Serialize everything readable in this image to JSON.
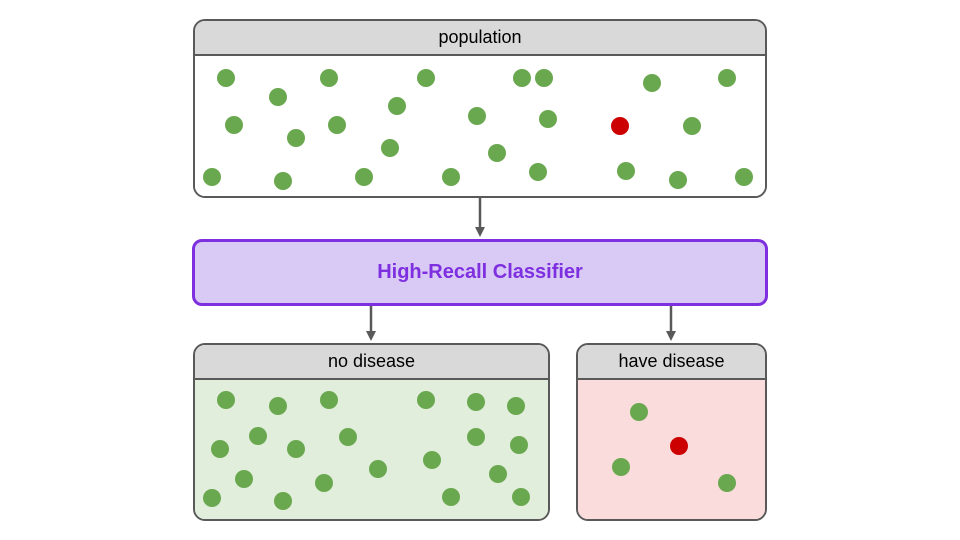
{
  "population": {
    "label": "population",
    "dots": [
      {
        "color": "green"
      },
      {
        "color": "green"
      },
      {
        "color": "green"
      },
      {
        "color": "green"
      },
      {
        "color": "green"
      },
      {
        "color": "green"
      },
      {
        "color": "green"
      },
      {
        "color": "green"
      },
      {
        "color": "green"
      },
      {
        "color": "green"
      },
      {
        "color": "green"
      },
      {
        "color": "green"
      },
      {
        "color": "green"
      },
      {
        "color": "red"
      },
      {
        "color": "green"
      },
      {
        "color": "green"
      },
      {
        "color": "green"
      },
      {
        "color": "green"
      },
      {
        "color": "green"
      },
      {
        "color": "green"
      },
      {
        "color": "green"
      },
      {
        "color": "green"
      },
      {
        "color": "green"
      },
      {
        "color": "green"
      },
      {
        "color": "green"
      },
      {
        "color": "green"
      }
    ]
  },
  "classifier": {
    "label": "High-Recall Classifier"
  },
  "no_disease": {
    "label": "no disease",
    "dots": [
      {
        "color": "green"
      },
      {
        "color": "green"
      },
      {
        "color": "green"
      },
      {
        "color": "green"
      },
      {
        "color": "green"
      },
      {
        "color": "green"
      },
      {
        "color": "green"
      },
      {
        "color": "green"
      },
      {
        "color": "green"
      },
      {
        "color": "green"
      },
      {
        "color": "green"
      },
      {
        "color": "green"
      },
      {
        "color": "green"
      },
      {
        "color": "green"
      },
      {
        "color": "green"
      },
      {
        "color": "green"
      },
      {
        "color": "green"
      },
      {
        "color": "green"
      },
      {
        "color": "green"
      },
      {
        "color": "green"
      },
      {
        "color": "green"
      },
      {
        "color": "green"
      }
    ]
  },
  "have_disease": {
    "label": "have disease",
    "dots": [
      {
        "color": "green"
      },
      {
        "color": "red"
      },
      {
        "color": "green"
      },
      {
        "color": "green"
      }
    ]
  },
  "colors": {
    "green_dot": "#6aa84f",
    "red_dot": "#cc0000",
    "classifier_accent": "#7e2fe0",
    "classifier_fill": "#d9c9f5",
    "no_disease_fill": "#e1eedc",
    "have_disease_fill": "#fadcdc",
    "header_fill": "#d9d9d9"
  }
}
